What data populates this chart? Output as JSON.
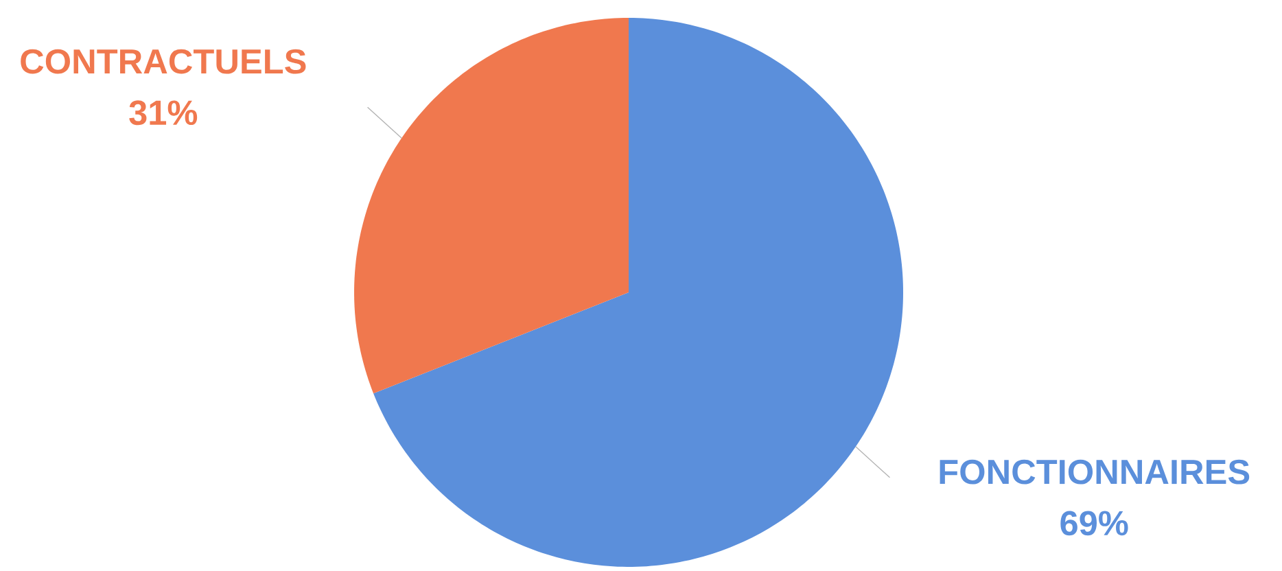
{
  "chart_data": {
    "type": "pie",
    "categories": [
      "FONCTIONNAIRES",
      "CONTRACTUELS"
    ],
    "values": [
      69,
      31
    ],
    "colors": [
      "#5b8fdb",
      "#f0784e"
    ],
    "value_labels": [
      "69%",
      "31%"
    ]
  }
}
